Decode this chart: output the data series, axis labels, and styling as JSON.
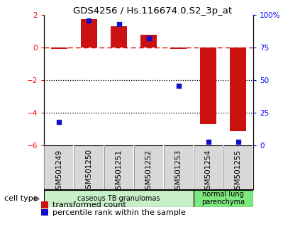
{
  "title": "GDS4256 / Hs.116674.0.S2_3p_at",
  "samples": [
    "GSM501249",
    "GSM501250",
    "GSM501251",
    "GSM501252",
    "GSM501253",
    "GSM501254",
    "GSM501255"
  ],
  "transformed_count": [
    -0.07,
    1.75,
    1.3,
    0.8,
    -0.07,
    -4.7,
    -5.1
  ],
  "percentile_rank": [
    18,
    96,
    93,
    82,
    46,
    3,
    3
  ],
  "ylim_left": [
    -6,
    2
  ],
  "ylim_right": [
    0,
    100
  ],
  "bar_color": "#cc1111",
  "dot_color": "#1111cc",
  "bar_width": 0.55,
  "groups": [
    {
      "label": "caseous TB granulomas",
      "samples": [
        0,
        1,
        2,
        3,
        4
      ],
      "color": "#c8f0c8"
    },
    {
      "label": "normal lung\nparenchyma",
      "samples": [
        5,
        6
      ],
      "color": "#7de87d"
    }
  ],
  "cell_type_label": "cell type",
  "legend_bar_label": "transformed count",
  "legend_dot_label": "percentile rank within the sample",
  "dotted_lines": [
    -2,
    -4
  ],
  "right_axis_ticks": [
    0,
    25,
    50,
    75,
    100
  ],
  "right_axis_labels": [
    "0",
    "25",
    "50",
    "75",
    "100%"
  ],
  "left_axis_ticks": [
    -6,
    -4,
    -2,
    0,
    2
  ],
  "sample_box_color": "#d8d8d8",
  "title_fontsize": 9.5,
  "axis_fontsize": 8,
  "label_fontsize": 7.5,
  "tick_fontsize": 7.5
}
